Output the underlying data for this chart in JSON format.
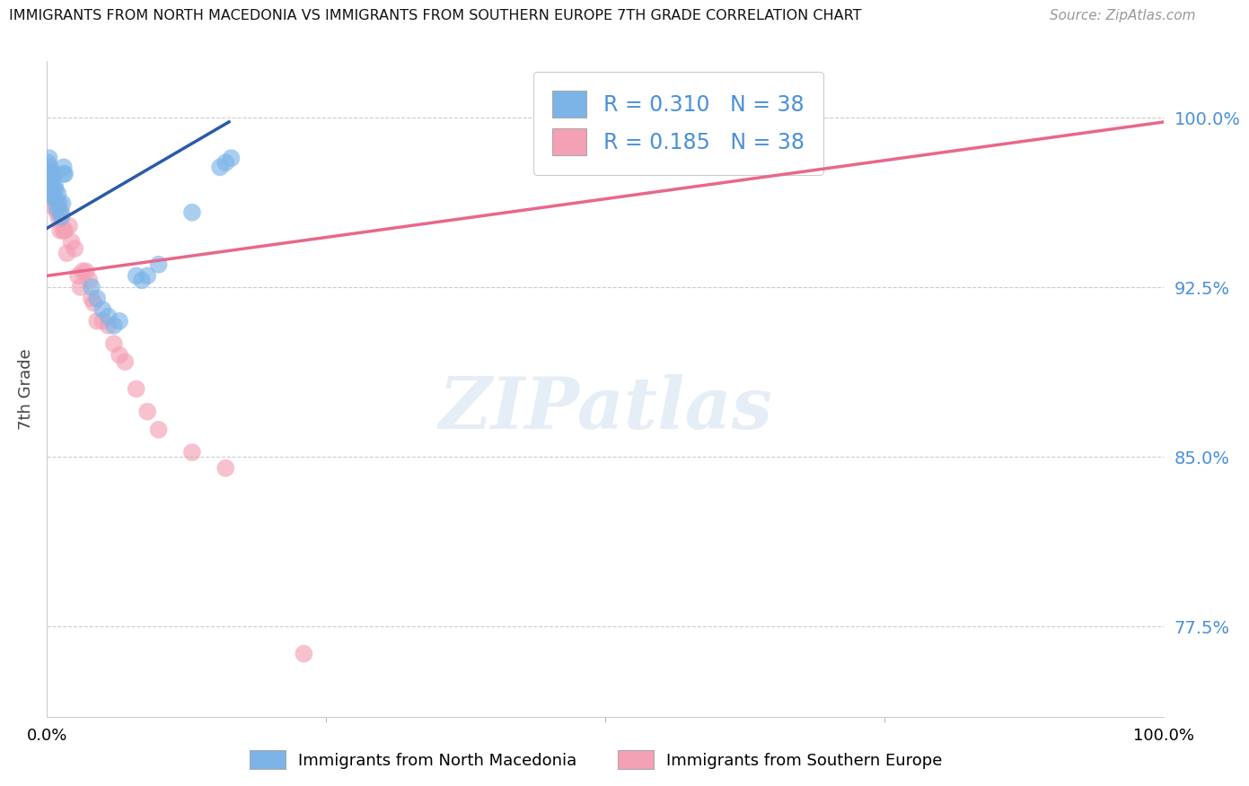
{
  "title": "IMMIGRANTS FROM NORTH MACEDONIA VS IMMIGRANTS FROM SOUTHERN EUROPE 7TH GRADE CORRELATION CHART",
  "source": "Source: ZipAtlas.com",
  "ylabel": "7th Grade",
  "y_ticks": [
    0.775,
    0.85,
    0.925,
    1.0
  ],
  "y_tick_labels": [
    "77.5%",
    "85.0%",
    "92.5%",
    "100.0%"
  ],
  "xlim": [
    0.0,
    1.0
  ],
  "ylim": [
    0.735,
    1.025
  ],
  "blue_R": "0.310",
  "blue_N": "38",
  "pink_R": "0.185",
  "pink_N": "38",
  "blue_color": "#7cb4e8",
  "pink_color": "#f4a0b5",
  "blue_line_color": "#2a5aaa",
  "pink_line_color": "#e8688a",
  "legend_label_blue": "Immigrants from North Macedonia",
  "legend_label_pink": "Immigrants from Southern Europe",
  "watermark_text": "ZIPatlas",
  "blue_x": [
    0.001,
    0.001,
    0.002,
    0.002,
    0.003,
    0.003,
    0.004,
    0.004,
    0.005,
    0.005,
    0.006,
    0.006,
    0.007,
    0.007,
    0.008,
    0.009,
    0.01,
    0.011,
    0.012,
    0.013,
    0.014,
    0.015,
    0.015,
    0.016,
    0.04,
    0.045,
    0.05,
    0.055,
    0.06,
    0.065,
    0.08,
    0.085,
    0.09,
    0.1,
    0.13,
    0.155,
    0.16,
    0.165
  ],
  "blue_y": [
    0.98,
    0.977,
    0.982,
    0.975,
    0.978,
    0.972,
    0.976,
    0.97,
    0.968,
    0.965,
    0.974,
    0.966,
    0.97,
    0.964,
    0.968,
    0.96,
    0.966,
    0.962,
    0.958,
    0.956,
    0.962,
    0.975,
    0.978,
    0.975,
    0.925,
    0.92,
    0.915,
    0.912,
    0.908,
    0.91,
    0.93,
    0.928,
    0.93,
    0.935,
    0.958,
    0.978,
    0.98,
    0.982
  ],
  "pink_x": [
    0.001,
    0.002,
    0.003,
    0.004,
    0.005,
    0.006,
    0.007,
    0.008,
    0.009,
    0.01,
    0.011,
    0.012,
    0.013,
    0.015,
    0.016,
    0.018,
    0.02,
    0.022,
    0.025,
    0.028,
    0.03,
    0.032,
    0.035,
    0.038,
    0.04,
    0.042,
    0.045,
    0.05,
    0.055,
    0.06,
    0.065,
    0.07,
    0.08,
    0.09,
    0.1,
    0.13,
    0.16,
    0.23
  ],
  "pink_y": [
    0.968,
    0.972,
    0.975,
    0.975,
    0.975,
    0.968,
    0.96,
    0.962,
    0.958,
    0.962,
    0.955,
    0.95,
    0.958,
    0.95,
    0.95,
    0.94,
    0.952,
    0.945,
    0.942,
    0.93,
    0.925,
    0.932,
    0.932,
    0.928,
    0.92,
    0.918,
    0.91,
    0.91,
    0.908,
    0.9,
    0.895,
    0.892,
    0.88,
    0.87,
    0.862,
    0.852,
    0.845,
    0.763
  ],
  "blue_line_x0": 0.0,
  "blue_line_y0": 0.951,
  "blue_line_x1": 0.163,
  "blue_line_y1": 0.998,
  "pink_line_x0": 0.0,
  "pink_line_y0": 0.93,
  "pink_line_x1": 1.0,
  "pink_line_y1": 0.998
}
